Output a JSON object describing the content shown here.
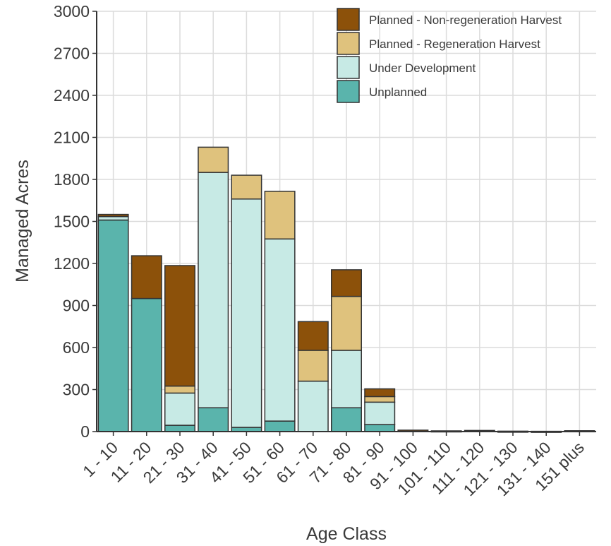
{
  "chart_data": {
    "type": "bar",
    "stacked": true,
    "xlabel": "Age Class",
    "ylabel": "Managed Acres",
    "ylim": [
      0,
      3000
    ],
    "yticks": [
      0,
      300,
      600,
      900,
      1200,
      1500,
      1800,
      2100,
      2400,
      2700,
      3000
    ],
    "grid": true,
    "legend_position": "top-right",
    "categories": [
      "1 - 10",
      "11 - 20",
      "21 - 30",
      "31 - 40",
      "41 - 50",
      "51 - 60",
      "61 - 70",
      "71 - 80",
      "81 - 90",
      "91 - 100",
      "101 - 110",
      "111 - 120",
      "121 - 130",
      "131 - 140",
      "151 plus"
    ],
    "series": [
      {
        "name": "Unplanned",
        "color": "#5ab4ac",
        "values": [
          1510,
          950,
          45,
          170,
          30,
          75,
          0,
          170,
          50,
          0,
          0,
          0,
          0,
          0,
          0
        ]
      },
      {
        "name": "Under Development",
        "color": "#c7eae5",
        "values": [
          25,
          0,
          230,
          1680,
          1630,
          1300,
          360,
          410,
          160,
          0,
          0,
          0,
          0,
          0,
          0
        ]
      },
      {
        "name": "Planned - Regeneration Harvest",
        "color": "#dfc27d",
        "values": [
          0,
          0,
          50,
          180,
          170,
          340,
          220,
          385,
          40,
          0,
          0,
          0,
          0,
          0,
          0
        ]
      },
      {
        "name": "Planned - Non-regeneration Harvest",
        "color": "#8c510a",
        "values": [
          15,
          305,
          860,
          0,
          0,
          0,
          205,
          190,
          55,
          10,
          5,
          8,
          3,
          2,
          6
        ]
      }
    ],
    "legend_order": [
      "Planned - Non-regeneration Harvest",
      "Planned - Regeneration Harvest",
      "Under Development",
      "Unplanned"
    ]
  }
}
